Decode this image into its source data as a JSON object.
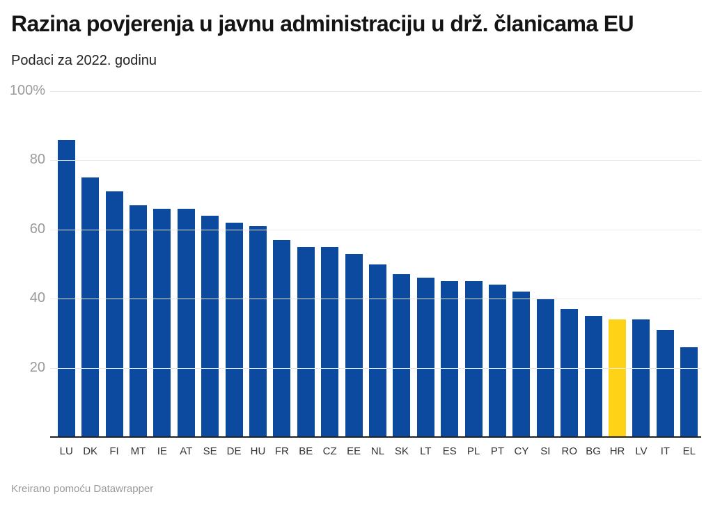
{
  "header": {
    "title": "Razina povjerenja u javnu administraciju u drž. članicama EU",
    "subtitle": "Podaci za 2022. godinu"
  },
  "footer": {
    "credit": "Kreirano pomoću Datawrapper"
  },
  "colors": {
    "bar": "#0b4a9e",
    "highlight": "#fdd217",
    "grid": "#e8e8e8",
    "axis": "#222222",
    "ytick_label": "#9a9a9a",
    "xtick_label": "#333333"
  },
  "chart_data": {
    "type": "bar",
    "title": "Razina povjerenja u javnu administraciju u drž. članicama EU",
    "subtitle": "Podaci za 2022. godinu",
    "xlabel": "",
    "ylabel": "",
    "ylim": [
      0,
      100
    ],
    "grid": true,
    "legend": false,
    "yticks": [
      {
        "value": 100,
        "label": "100%"
      },
      {
        "value": 80,
        "label": "80"
      },
      {
        "value": 60,
        "label": "60"
      },
      {
        "value": 40,
        "label": "40"
      },
      {
        "value": 20,
        "label": "20"
      }
    ],
    "highlight_category": "HR",
    "categories": [
      "LU",
      "DK",
      "FI",
      "MT",
      "IE",
      "AT",
      "SE",
      "DE",
      "HU",
      "FR",
      "BE",
      "CZ",
      "EE",
      "NL",
      "SK",
      "LT",
      "ES",
      "PL",
      "PT",
      "CY",
      "SI",
      "RO",
      "BG",
      "HR",
      "LV",
      "IT",
      "EL"
    ],
    "values": [
      86,
      75,
      71,
      67,
      66,
      66,
      64,
      62,
      61,
      57,
      55,
      55,
      53,
      50,
      47,
      46,
      45,
      45,
      44,
      42,
      40,
      37,
      35,
      34,
      34,
      31,
      26
    ]
  }
}
